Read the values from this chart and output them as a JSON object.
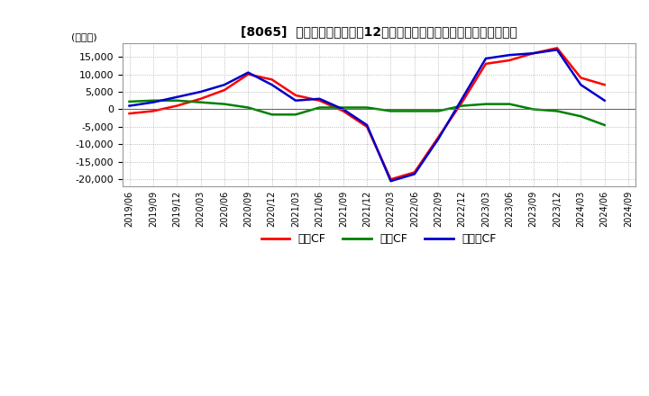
{
  "title": "[8065]  キャッシュフローの12か月移動合計の対前年同期増減額の推移",
  "ylabel": "(百万円)",
  "ylim": [
    -22000,
    19000
  ],
  "yticks": [
    -20000,
    -15000,
    -10000,
    -5000,
    0,
    5000,
    10000,
    15000
  ],
  "legend_labels": [
    "営業CF",
    "投賄CF",
    "フリーCF"
  ],
  "legend_colors": [
    "#ff0000",
    "#008000",
    "#0000cc"
  ],
  "background_color": "#ffffff",
  "grid_color": "#aaaaaa",
  "dates": [
    "2019/06",
    "2019/09",
    "2019/12",
    "2020/03",
    "2020/06",
    "2020/09",
    "2020/12",
    "2021/03",
    "2021/06",
    "2021/09",
    "2021/12",
    "2022/03",
    "2022/06",
    "2022/09",
    "2022/12",
    "2023/03",
    "2023/06",
    "2023/09",
    "2023/12",
    "2024/03",
    "2024/06",
    "2024/09"
  ],
  "operating_cf": [
    -1200,
    -500,
    1000,
    3000,
    5500,
    10000,
    8500,
    4000,
    2500,
    -500,
    -5000,
    -20000,
    -18000,
    -8000,
    2000,
    13000,
    14000,
    16000,
    17500,
    9000,
    7000,
    null
  ],
  "investing_cf": [
    2200,
    2500,
    2500,
    2000,
    1500,
    500,
    -1500,
    -1500,
    500,
    500,
    500,
    -500,
    -500,
    -500,
    1000,
    1500,
    1500,
    0,
    -500,
    -2000,
    -4500,
    null
  ],
  "free_cf": [
    1000,
    2000,
    3500,
    5000,
    7000,
    10500,
    7000,
    2500,
    3000,
    0,
    -4500,
    -20500,
    -18500,
    -8500,
    3000,
    14500,
    15500,
    16000,
    17000,
    7000,
    2500,
    null
  ]
}
